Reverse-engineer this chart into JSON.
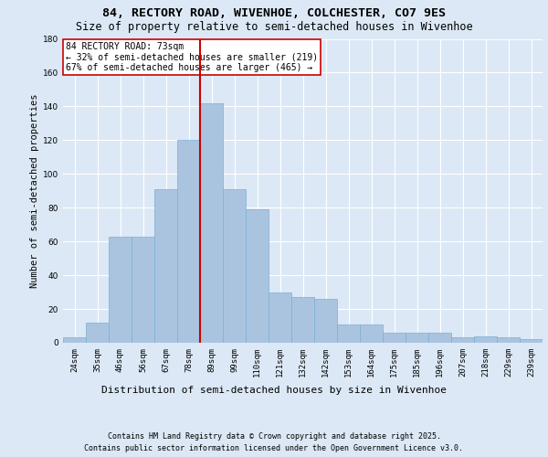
{
  "title1": "84, RECTORY ROAD, WIVENHOE, COLCHESTER, CO7 9ES",
  "title2": "Size of property relative to semi-detached houses in Wivenhoe",
  "xlabel": "Distribution of semi-detached houses by size in Wivenhoe",
  "ylabel": "Number of semi-detached properties",
  "categories": [
    "24sqm",
    "35sqm",
    "46sqm",
    "56sqm",
    "67sqm",
    "78sqm",
    "89sqm",
    "99sqm",
    "110sqm",
    "121sqm",
    "132sqm",
    "142sqm",
    "153sqm",
    "164sqm",
    "175sqm",
    "185sqm",
    "196sqm",
    "207sqm",
    "218sqm",
    "229sqm",
    "239sqm"
  ],
  "values": [
    3,
    12,
    63,
    63,
    91,
    120,
    142,
    91,
    79,
    30,
    27,
    26,
    11,
    11,
    6,
    6,
    6,
    3,
    4,
    3,
    2
  ],
  "bar_color": "#aac4e0",
  "bar_edge_color": "#7aafd4",
  "vline_x": 5.5,
  "vline_color": "#cc0000",
  "annotation_text": "84 RECTORY ROAD: 73sqm\n← 32% of semi-detached houses are smaller (219)\n67% of semi-detached houses are larger (465) →",
  "annotation_box_color": "#ffffff",
  "annotation_box_edge": "#cc0000",
  "ylim": [
    0,
    180
  ],
  "yticks": [
    0,
    20,
    40,
    60,
    80,
    100,
    120,
    140,
    160,
    180
  ],
  "footer1": "Contains HM Land Registry data © Crown copyright and database right 2025.",
  "footer2": "Contains public sector information licensed under the Open Government Licence v3.0.",
  "background_color": "#dce8f5",
  "plot_background": "#dce8f5",
  "grid_color": "#ffffff",
  "title1_fontsize": 9.5,
  "title2_fontsize": 8.5,
  "xlabel_fontsize": 8,
  "ylabel_fontsize": 7.5,
  "tick_fontsize": 6.5,
  "annotation_fontsize": 7,
  "footer_fontsize": 6
}
